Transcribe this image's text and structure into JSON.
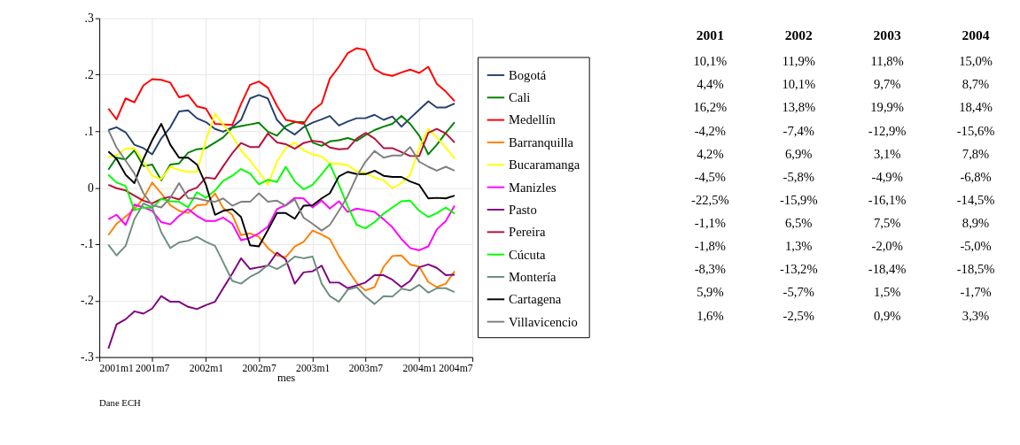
{
  "chart_data": [
    {
      "type": "line",
      "xlabel": "mes",
      "grid": true,
      "legend": "right",
      "line_style": "solid",
      "marker": "none",
      "x": [
        "2001-02",
        "2001-03",
        "2001-04",
        "2001-05",
        "2001-06",
        "2001-07",
        "2001-08",
        "2001-09",
        "2001-10",
        "2001-11",
        "2001-12",
        "2002-01",
        "2002-02",
        "2002-03",
        "2002-04",
        "2002-05",
        "2002-06",
        "2002-07",
        "2002-08",
        "2002-09",
        "2002-10",
        "2002-11",
        "2002-12",
        "2003-01",
        "2003-02",
        "2003-03",
        "2003-04",
        "2003-05",
        "2003-06",
        "2003-07",
        "2003-08",
        "2003-09",
        "2003-10",
        "2003-11",
        "2003-12",
        "2004-01",
        "2004-02",
        "2004-03",
        "2004-04",
        "2004-05"
      ],
      "xlim": [
        "2001-01",
        "2004-07"
      ],
      "xticks": [
        {
          "value": "2001-01",
          "label": "2001m1"
        },
        {
          "value": "2001-07",
          "label": "2001m7"
        },
        {
          "value": "2002-01",
          "label": "2002m1"
        },
        {
          "value": "2002-07",
          "label": "2002m7"
        },
        {
          "value": "2003-01",
          "label": "2003m1"
        },
        {
          "value": "2003-07",
          "label": "2003m7"
        },
        {
          "value": "2004-01",
          "label": "2004m1"
        },
        {
          "value": "2004-07",
          "label": "2004m7"
        }
      ],
      "ylim": [
        -0.3,
        0.3
      ],
      "yticks": [
        {
          "value": -0.3,
          "label": "-.3"
        },
        {
          "value": -0.2,
          "label": "-.2"
        },
        {
          "value": -0.1,
          "label": "-.1"
        },
        0,
        {
          "value": 0.1,
          "label": ".1"
        },
        {
          "value": 0.2,
          "label": ".2"
        },
        {
          "value": 0.3,
          "label": ".3"
        }
      ],
      "annotations": [
        "Dane ECH"
      ],
      "series": [
        {
          "name": "Bogotá",
          "color": "#26406e",
          "values": [
            0.102,
            0.107,
            0.098,
            0.076,
            0.07,
            0.059,
            0.087,
            0.107,
            0.135,
            0.137,
            0.123,
            0.116,
            0.104,
            0.099,
            0.107,
            0.12,
            0.158,
            0.164,
            0.158,
            0.12,
            0.104,
            0.094,
            0.107,
            0.115,
            0.121,
            0.127,
            0.11,
            0.117,
            0.123,
            0.123,
            0.129,
            0.12,
            0.126,
            0.108,
            0.123,
            0.138,
            0.153,
            0.142,
            0.142,
            0.149
          ]
        },
        {
          "name": "Cali",
          "color": "#008000",
          "values": [
            0.032,
            0.053,
            0.05,
            0.066,
            0.038,
            0.041,
            0.013,
            0.041,
            0.043,
            0.062,
            0.068,
            0.07,
            0.08,
            0.089,
            0.106,
            0.109,
            0.112,
            0.115,
            0.099,
            0.092,
            0.109,
            0.116,
            0.116,
            0.08,
            0.074,
            0.082,
            0.084,
            0.088,
            0.083,
            0.093,
            0.102,
            0.108,
            0.113,
            0.127,
            0.113,
            0.092,
            0.059,
            0.076,
            0.097,
            0.116
          ]
        },
        {
          "name": "Medellín",
          "color": "#ff0000",
          "values": [
            0.14,
            0.121,
            0.158,
            0.151,
            0.181,
            0.192,
            0.191,
            0.186,
            0.16,
            0.164,
            0.144,
            0.14,
            0.113,
            0.112,
            0.111,
            0.148,
            0.182,
            0.188,
            0.177,
            0.145,
            0.12,
            0.117,
            0.113,
            0.137,
            0.149,
            0.193,
            0.214,
            0.238,
            0.247,
            0.244,
            0.21,
            0.201,
            0.198,
            0.204,
            0.209,
            0.203,
            0.214,
            0.184,
            0.17,
            0.153
          ]
        },
        {
          "name": "Barranquilla",
          "color": "#ff8000",
          "values": [
            -0.084,
            -0.064,
            -0.051,
            -0.038,
            -0.019,
            0.009,
            -0.01,
            -0.031,
            -0.041,
            -0.045,
            -0.031,
            -0.03,
            -0.01,
            -0.036,
            -0.048,
            -0.084,
            -0.081,
            -0.087,
            -0.107,
            -0.12,
            -0.123,
            -0.104,
            -0.096,
            -0.076,
            -0.083,
            -0.091,
            -0.121,
            -0.145,
            -0.169,
            -0.182,
            -0.176,
            -0.14,
            -0.121,
            -0.12,
            -0.136,
            -0.14,
            -0.167,
            -0.176,
            -0.17,
            -0.148
          ]
        },
        {
          "name": "Bucaramanga",
          "color": "#ffff00",
          "values": [
            0.055,
            0.057,
            0.069,
            0.07,
            0.046,
            0.021,
            0.015,
            0.037,
            0.031,
            0.028,
            0.028,
            0.084,
            0.131,
            0.112,
            0.092,
            0.066,
            0.048,
            0.028,
            0.005,
            0.046,
            0.07,
            0.08,
            0.066,
            0.059,
            0.055,
            0.043,
            0.042,
            0.04,
            0.029,
            0.026,
            0.018,
            0.013,
            -0.001,
            0.008,
            0.023,
            0.071,
            0.104,
            0.089,
            0.071,
            0.051
          ]
        },
        {
          "name": "Manizles",
          "color": "#ff00ff",
          "values": [
            -0.056,
            -0.048,
            -0.066,
            -0.03,
            -0.035,
            -0.041,
            -0.061,
            -0.065,
            -0.05,
            -0.038,
            -0.05,
            -0.059,
            -0.059,
            -0.053,
            -0.064,
            -0.093,
            -0.089,
            -0.081,
            -0.069,
            -0.038,
            -0.031,
            -0.018,
            -0.019,
            -0.035,
            -0.023,
            -0.037,
            -0.024,
            -0.043,
            -0.037,
            -0.04,
            -0.043,
            -0.056,
            -0.07,
            -0.091,
            -0.107,
            -0.111,
            -0.104,
            -0.074,
            -0.059,
            -0.032
          ]
        },
        {
          "name": "Pasto",
          "color": "#800080",
          "values": [
            -0.285,
            -0.242,
            -0.233,
            -0.219,
            -0.223,
            -0.214,
            -0.192,
            -0.202,
            -0.202,
            -0.211,
            -0.215,
            -0.208,
            -0.202,
            -0.178,
            -0.152,
            -0.125,
            -0.144,
            -0.141,
            -0.138,
            -0.115,
            -0.127,
            -0.17,
            -0.15,
            -0.148,
            -0.138,
            -0.168,
            -0.168,
            -0.178,
            -0.173,
            -0.168,
            -0.155,
            -0.155,
            -0.163,
            -0.176,
            -0.165,
            -0.141,
            -0.136,
            -0.142,
            -0.155,
            -0.154
          ]
        },
        {
          "name": "Pereira",
          "color": "#b5103c",
          "values": [
            0.005,
            -0.001,
            -0.005,
            -0.014,
            -0.023,
            -0.028,
            -0.02,
            -0.016,
            -0.021,
            -0.006,
            0.0,
            0.018,
            0.016,
            0.038,
            0.061,
            0.079,
            0.072,
            0.072,
            0.096,
            0.08,
            0.077,
            0.069,
            0.079,
            0.083,
            0.081,
            0.071,
            0.068,
            0.069,
            0.087,
            0.097,
            0.087,
            0.07,
            0.07,
            0.063,
            0.056,
            0.056,
            0.097,
            0.104,
            0.096,
            0.08
          ]
        },
        {
          "name": "Cúcuta",
          "color": "#00ff00",
          "values": [
            0.023,
            0.009,
            0.003,
            -0.04,
            -0.035,
            -0.036,
            -0.02,
            -0.024,
            -0.025,
            -0.035,
            -0.008,
            -0.018,
            -0.005,
            0.012,
            0.021,
            0.033,
            0.025,
            0.006,
            0.014,
            0.01,
            0.037,
            0.011,
            -0.003,
            0.005,
            0.024,
            0.042,
            0.005,
            -0.033,
            -0.066,
            -0.072,
            -0.061,
            -0.046,
            -0.035,
            -0.024,
            -0.023,
            -0.041,
            -0.052,
            -0.045,
            -0.035,
            -0.046
          ]
        },
        {
          "name": "Montería",
          "color": "#6e8f80",
          "values": [
            -0.101,
            -0.12,
            -0.103,
            -0.056,
            -0.028,
            -0.035,
            -0.079,
            -0.107,
            -0.097,
            -0.094,
            -0.087,
            -0.096,
            -0.103,
            -0.132,
            -0.165,
            -0.17,
            -0.158,
            -0.15,
            -0.137,
            -0.144,
            -0.135,
            -0.122,
            -0.125,
            -0.122,
            -0.17,
            -0.192,
            -0.202,
            -0.181,
            -0.176,
            -0.193,
            -0.206,
            -0.192,
            -0.193,
            -0.179,
            -0.182,
            -0.172,
            -0.186,
            -0.178,
            -0.178,
            -0.185
          ]
        },
        {
          "name": "Cartagena",
          "color": "#000000",
          "values": [
            0.064,
            0.051,
            0.023,
            0.008,
            0.051,
            0.084,
            0.113,
            0.076,
            0.053,
            0.053,
            0.041,
            0.005,
            -0.048,
            -0.041,
            -0.038,
            -0.052,
            -0.102,
            -0.104,
            -0.075,
            -0.045,
            -0.045,
            -0.055,
            -0.032,
            -0.031,
            -0.019,
            -0.01,
            0.02,
            0.028,
            0.024,
            0.024,
            0.03,
            0.021,
            0.019,
            0.019,
            0.011,
            0.005,
            -0.019,
            -0.018,
            -0.019,
            -0.014
          ]
        },
        {
          "name": "Villavicencio",
          "color": "#808080",
          "values": [
            0.102,
            0.071,
            0.048,
            0.025,
            -0.01,
            -0.031,
            -0.035,
            -0.018,
            0.008,
            -0.019,
            -0.019,
            -0.023,
            -0.025,
            -0.019,
            -0.032,
            -0.025,
            -0.025,
            -0.01,
            -0.025,
            -0.023,
            -0.032,
            -0.021,
            -0.053,
            -0.064,
            -0.076,
            -0.066,
            -0.041,
            -0.015,
            0.02,
            0.046,
            0.065,
            0.053,
            0.057,
            0.057,
            0.072,
            0.046,
            0.037,
            0.03,
            0.037,
            0.03
          ]
        }
      ]
    },
    {
      "type": "heatmap",
      "categories": [
        "2001",
        "2002",
        "2003",
        "2004"
      ],
      "y_categories": [
        null,
        null,
        null,
        null,
        null,
        null,
        null,
        null,
        null,
        null,
        null,
        null
      ],
      "cells": [
        [
          10.1,
          11.9,
          11.8,
          15.0
        ],
        [
          4.4,
          10.1,
          9.7,
          8.7
        ],
        [
          16.2,
          13.8,
          19.9,
          18.4
        ],
        [
          -4.2,
          -7.4,
          -12.9,
          -15.6
        ],
        [
          4.2,
          6.9,
          3.1,
          7.8
        ],
        [
          -4.5,
          -5.8,
          -4.9,
          -6.8
        ],
        [
          -22.5,
          -15.9,
          -16.1,
          -14.5
        ],
        [
          -1.1,
          6.5,
          7.5,
          8.9
        ],
        [
          -1.8,
          1.3,
          -2.0,
          -5.0
        ],
        [
          -8.3,
          -13.2,
          -18.4,
          -18.5
        ],
        [
          5.9,
          -5.7,
          1.5,
          -1.7
        ],
        [
          1.6,
          -2.5,
          0.9,
          3.3
        ]
      ],
      "cell_labels": [
        [
          "10,1%",
          "11,9%",
          "11,8%",
          "15,0%"
        ],
        [
          "4,4%",
          "10,1%",
          "9,7%",
          "8,7%"
        ],
        [
          "16,2%",
          "13,8%",
          "19,9%",
          "18,4%"
        ],
        [
          "-4,2%",
          "-7,4%",
          "-12,9%",
          "-15,6%"
        ],
        [
          "4,2%",
          "6,9%",
          "3,1%",
          "7,8%"
        ],
        [
          "-4,5%",
          "-5,8%",
          "-4,9%",
          "-6,8%"
        ],
        [
          "-22,5%",
          "-15,9%",
          "-16,1%",
          "-14,5%"
        ],
        [
          "-1,1%",
          "6,5%",
          "7,5%",
          "8,9%"
        ],
        [
          "-1,8%",
          "1,3%",
          "-2,0%",
          "-5,0%"
        ],
        [
          "-8,3%",
          "-13,2%",
          "-18,4%",
          "-18,5%"
        ],
        [
          "5,9%",
          "-5,7%",
          "1,5%",
          "-1,7%"
        ],
        [
          "1,6%",
          "-2,5%",
          "0,9%",
          "3,3%"
        ]
      ]
    }
  ]
}
